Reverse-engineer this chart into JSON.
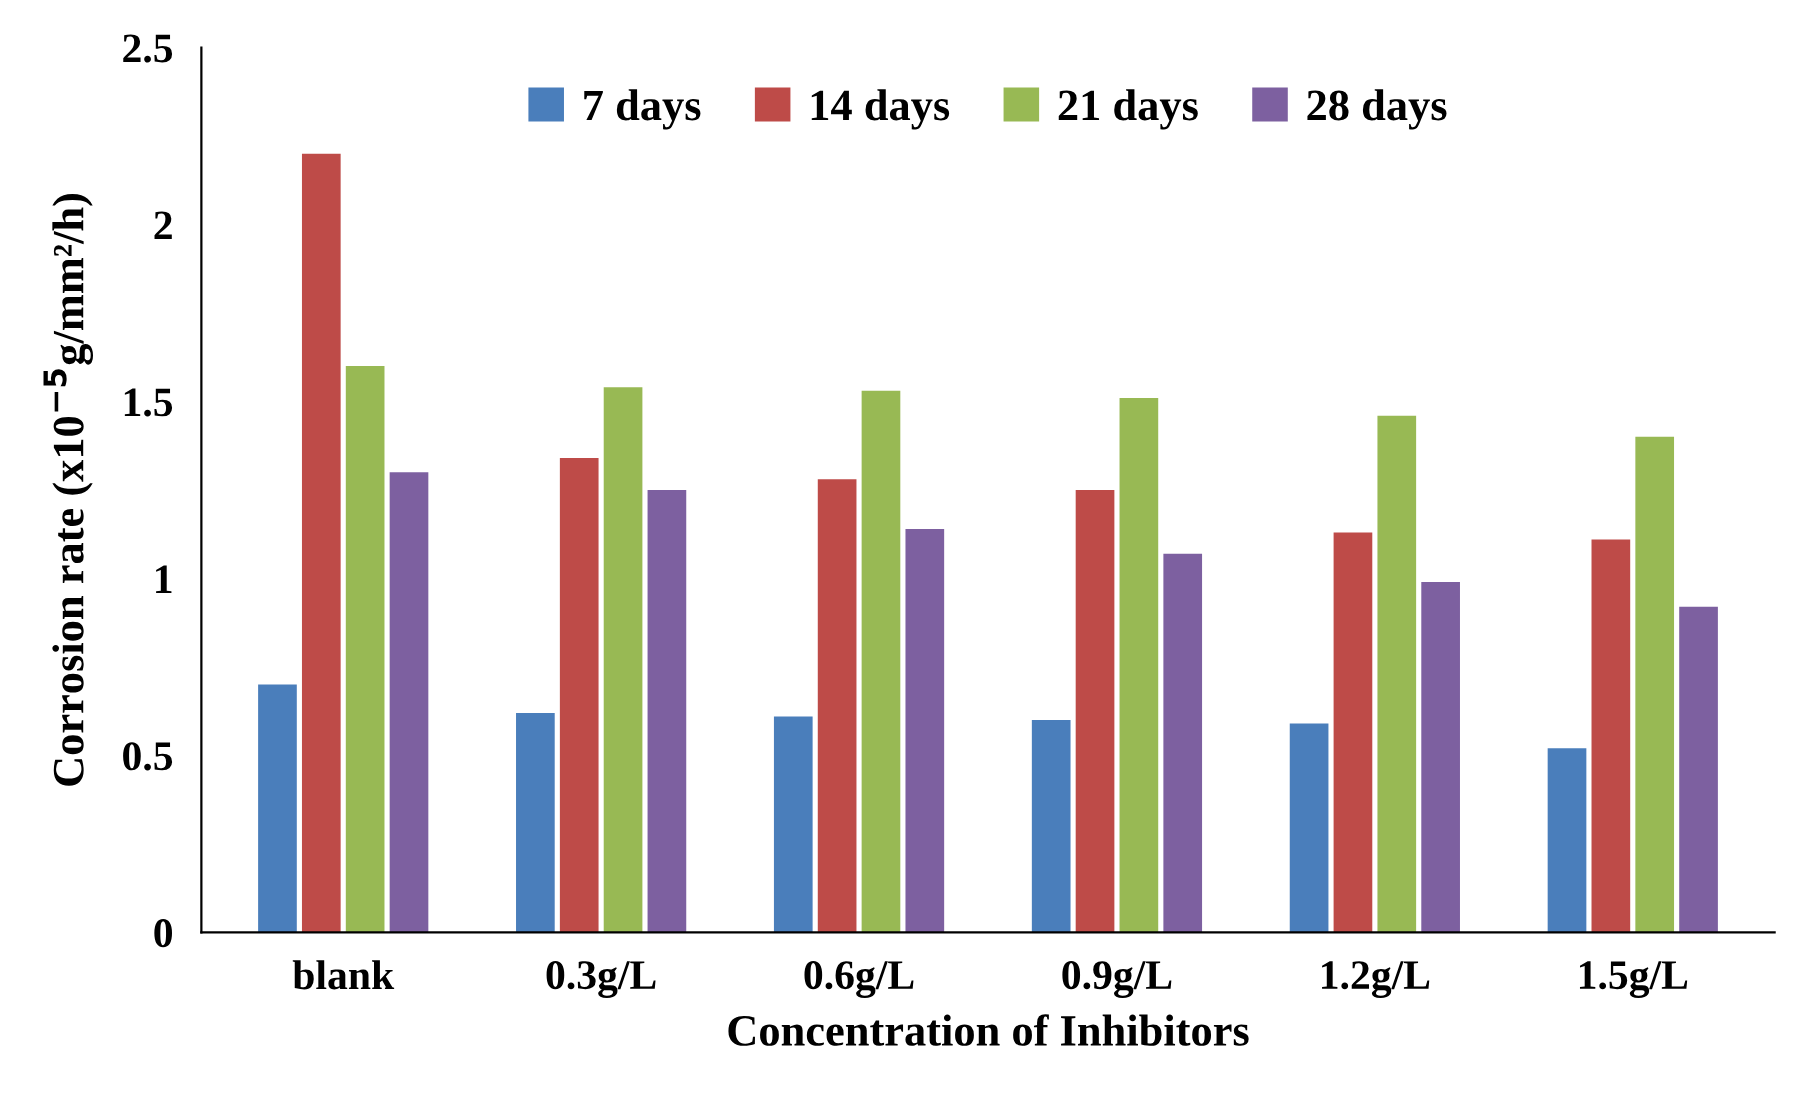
{
  "chart_data": {
    "type": "bar",
    "xlabel": "Concentration of Inhibitors",
    "ylabel": "Corrosion rate (x10$^{−5}$g/mm²/h)",
    "categories": [
      "blank",
      "0.3g/L",
      "0.6g/L",
      "0.9g/L",
      "1.2g/L",
      "1.5g/L"
    ],
    "series": [
      {
        "name": "7 days",
        "color": "#4a7ebb",
        "values": [
          0.7,
          0.62,
          0.61,
          0.6,
          0.59,
          0.52
        ]
      },
      {
        "name": "14 days",
        "color": "#be4b48",
        "values": [
          2.2,
          1.34,
          1.28,
          1.25,
          1.13,
          1.11
        ]
      },
      {
        "name": "21 days",
        "color": "#98b954",
        "values": [
          1.6,
          1.54,
          1.53,
          1.51,
          1.46,
          1.4
        ]
      },
      {
        "name": "28 days",
        "color": "#7d60a0",
        "values": [
          1.3,
          1.25,
          1.14,
          1.07,
          0.99,
          0.92
        ]
      }
    ],
    "ylim": [
      0,
      2.5
    ],
    "yticks": [
      0,
      0.5,
      1,
      1.5,
      2,
      2.5
    ],
    "grid": false,
    "legend": "top"
  }
}
